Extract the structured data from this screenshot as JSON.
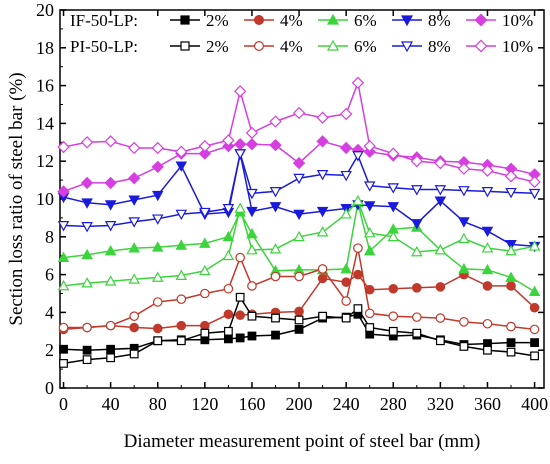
{
  "chart_data": {
    "type": "line",
    "xlabel": "Diameter measurement point of steel bar (mm)",
    "ylabel": "Section loss ratio of steel bar (%)",
    "xlim": [
      -3,
      408
    ],
    "ylim": [
      0,
      20
    ],
    "xticks": [
      0,
      40,
      80,
      120,
      160,
      200,
      240,
      280,
      320,
      360,
      400
    ],
    "yticks": [
      0,
      2,
      4,
      6,
      8,
      10,
      12,
      14,
      16,
      18,
      20
    ],
    "x": [
      0,
      20,
      40,
      60,
      80,
      100,
      120,
      140,
      150,
      160,
      180,
      200,
      220,
      240,
      250,
      260,
      280,
      300,
      320,
      340,
      360,
      380,
      400
    ],
    "legend": {
      "group_labels": [
        "IF-50-LP:",
        "PI-50-LP:"
      ],
      "entry_labels": [
        "2%",
        "4%",
        "6%",
        "8%",
        "10%"
      ],
      "placement": "top"
    },
    "series": [
      {
        "name": "2%",
        "group": "IF-50-LP",
        "color": "#000000",
        "marker": "square",
        "filled": true,
        "values": [
          2.05,
          2.0,
          2.05,
          2.1,
          2.5,
          2.55,
          2.55,
          2.6,
          2.65,
          2.75,
          2.8,
          3.1,
          3.7,
          3.75,
          3.9,
          2.85,
          2.75,
          2.8,
          2.55,
          2.3,
          2.35,
          2.4,
          2.4
        ]
      },
      {
        "name": "4%",
        "group": "IF-50-LP",
        "color": "#c0392b",
        "marker": "circle",
        "filled": true,
        "values": [
          3.1,
          3.2,
          3.3,
          3.2,
          3.15,
          3.3,
          3.3,
          3.9,
          3.85,
          3.9,
          4.0,
          4.05,
          5.8,
          5.6,
          6.0,
          5.2,
          5.25,
          5.3,
          5.35,
          6.0,
          5.4,
          5.4,
          4.25
        ]
      },
      {
        "name": "6%",
        "group": "IF-50-LP",
        "color": "#3cd43c",
        "marker": "triangle",
        "filled": true,
        "values": [
          6.9,
          7.05,
          7.25,
          7.4,
          7.45,
          7.55,
          7.65,
          8.0,
          9.3,
          8.15,
          6.2,
          6.25,
          6.25,
          6.3,
          9.8,
          7.25,
          8.4,
          8.5,
          7.3,
          6.3,
          6.25,
          5.85,
          5.1
        ]
      },
      {
        "name": "8%",
        "group": "IF-50-LP",
        "color": "#1a1adc",
        "marker": "triangle-down",
        "filled": true,
        "values": [
          10.1,
          9.8,
          9.7,
          9.95,
          10.2,
          11.75,
          9.2,
          9.3,
          12.4,
          9.35,
          9.6,
          9.2,
          9.35,
          9.5,
          9.7,
          9.65,
          9.6,
          8.7,
          9.9,
          8.8,
          8.3,
          7.6,
          7.5
        ]
      },
      {
        "name": "10%",
        "group": "IF-50-LP",
        "color": "#d53fe0",
        "marker": "diamond",
        "filled": true,
        "values": [
          10.4,
          10.85,
          10.85,
          11.1,
          11.7,
          12.4,
          12.4,
          12.8,
          12.9,
          12.9,
          12.85,
          11.9,
          13.05,
          12.7,
          12.6,
          12.5,
          12.3,
          12.2,
          12.0,
          11.95,
          11.8,
          11.6,
          11.3
        ]
      },
      {
        "name": "2%",
        "group": "PI-50-LP",
        "color": "#000000",
        "marker": "square",
        "filled": false,
        "values": [
          1.3,
          1.5,
          1.6,
          1.8,
          2.5,
          2.5,
          2.9,
          3.0,
          4.8,
          3.8,
          3.7,
          3.6,
          3.8,
          3.7,
          4.2,
          3.2,
          3.0,
          2.9,
          2.5,
          2.2,
          2.0,
          1.9,
          1.7
        ]
      },
      {
        "name": "4%",
        "group": "PI-50-LP",
        "color": "#c0392b",
        "marker": "circle",
        "filled": false,
        "values": [
          3.2,
          3.2,
          3.3,
          3.8,
          4.55,
          4.7,
          5.0,
          5.25,
          6.9,
          5.4,
          5.9,
          5.9,
          6.3,
          4.6,
          7.4,
          3.95,
          3.8,
          3.75,
          3.7,
          3.5,
          3.4,
          3.25,
          3.1
        ]
      },
      {
        "name": "6%",
        "group": "PI-50-LP",
        "color": "#3cd43c",
        "marker": "triangle",
        "filled": false,
        "values": [
          5.4,
          5.55,
          5.65,
          5.75,
          5.85,
          5.95,
          6.2,
          7.0,
          9.5,
          7.3,
          7.35,
          8.0,
          8.25,
          9.2,
          9.9,
          8.2,
          8.0,
          7.2,
          7.3,
          7.9,
          7.4,
          7.25,
          7.5
        ]
      },
      {
        "name": "8%",
        "group": "PI-50-LP",
        "color": "#1a1adc",
        "marker": "triangle-down",
        "filled": false,
        "values": [
          8.6,
          8.55,
          8.6,
          8.8,
          8.95,
          9.2,
          9.3,
          9.5,
          12.4,
          10.3,
          10.4,
          11.1,
          11.3,
          11.25,
          12.3,
          10.7,
          10.6,
          10.5,
          10.5,
          10.45,
          10.4,
          10.35,
          10.3
        ]
      },
      {
        "name": "10%",
        "group": "PI-50-LP",
        "color": "#d53fe0",
        "marker": "diamond",
        "filled": false,
        "values": [
          12.75,
          13.0,
          13.05,
          12.7,
          12.7,
          12.5,
          12.8,
          13.1,
          15.7,
          13.5,
          14.1,
          14.55,
          14.3,
          14.5,
          16.15,
          12.8,
          12.4,
          12.0,
          11.9,
          11.6,
          11.5,
          11.2,
          10.9
        ]
      }
    ]
  }
}
